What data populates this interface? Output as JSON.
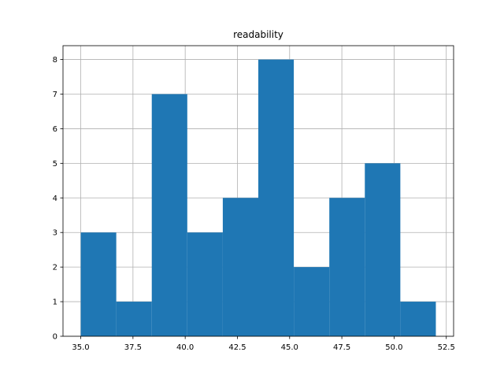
{
  "chart_data": {
    "type": "bar",
    "title": "readability",
    "xlabel": "",
    "ylabel": "",
    "bins": [
      {
        "start": 35.0,
        "end": 36.7,
        "count": 3
      },
      {
        "start": 36.7,
        "end": 38.4,
        "count": 1
      },
      {
        "start": 38.4,
        "end": 40.1,
        "count": 7
      },
      {
        "start": 40.1,
        "end": 41.8,
        "count": 3
      },
      {
        "start": 41.8,
        "end": 43.5,
        "count": 4
      },
      {
        "start": 43.5,
        "end": 45.2,
        "count": 8
      },
      {
        "start": 45.2,
        "end": 46.9,
        "count": 2
      },
      {
        "start": 46.9,
        "end": 48.6,
        "count": 4
      },
      {
        "start": 48.6,
        "end": 50.3,
        "count": 5
      },
      {
        "start": 50.3,
        "end": 52.0,
        "count": 1
      }
    ],
    "xlim": [
      34.15,
      52.85
    ],
    "ylim": [
      0,
      8.4
    ],
    "xticks": [
      35.0,
      37.5,
      40.0,
      42.5,
      45.0,
      47.5,
      50.0,
      52.5
    ],
    "xtick_labels": [
      "35.0",
      "37.5",
      "40.0",
      "42.5",
      "45.0",
      "47.5",
      "50.0",
      "52.5"
    ],
    "yticks": [
      0,
      1,
      2,
      3,
      4,
      5,
      6,
      7,
      8
    ],
    "ytick_labels": [
      "0",
      "1",
      "2",
      "3",
      "4",
      "5",
      "6",
      "7",
      "8"
    ],
    "grid": true,
    "bar_color": "#1f77b4",
    "grid_color": "#b0b0b0"
  }
}
